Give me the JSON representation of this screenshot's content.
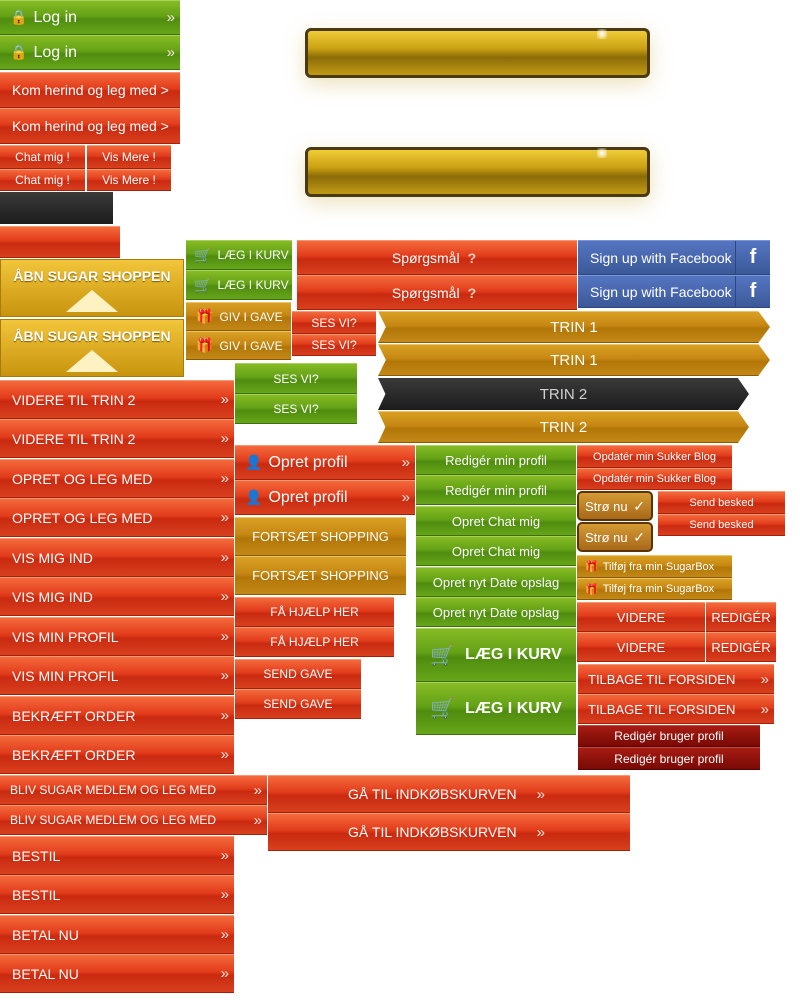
{
  "icons": {
    "arrow": "»",
    "lock": "🔒",
    "cart": "🛒",
    "gift": "🎁",
    "user": "👤",
    "question": "?",
    "check": "✓",
    "facebook": "f"
  },
  "colors": {
    "red": "#e23c1b",
    "green": "#64a216",
    "gold": "#c68712",
    "dark_red": "#8e120b",
    "facebook": "#3b5998",
    "dark": "#2a2a2a"
  },
  "buttons": {
    "log_in": "Log in",
    "kom_herind": "Kom herind og leg med >",
    "chat_mig": "Chat mig !",
    "vis_mere": "Vis Mere !",
    "laeg_i_kurv_small": "LÆG I KURV",
    "aabn_sugar_shoppen": "ÅBN SUGAR SHOPPEN",
    "giv_i_gave": "GIV I GAVE",
    "sporgsmaal": "Spørgsmål",
    "sign_up_facebook": "Sign up with Facebook",
    "ses_vi": "SES VI?",
    "trin_1": "TRIN 1",
    "trin_2": "TRIN 2",
    "videre_til_trin_2": "VIDERE TIL TRIN 2",
    "opret_og_leg_med": "OPRET OG LEG MED",
    "vis_mig_ind": "VIS MIG IND",
    "vis_min_profil": "VIS MIN PROFIL",
    "bekraeft_order": "BEKRÆFT ORDER",
    "bliv_sugar_medlem": "BLIV SUGAR MEDLEM OG LEG MED",
    "bestil": "BESTIL",
    "betal_nu": "BETAL NU",
    "opret_profil": "Opret profil",
    "fortsaet_shopping": "FORTSÆT SHOPPING",
    "faa_hjaelp_her": "FÅ HJÆLP HER",
    "send_gave": "SEND GAVE",
    "gaa_til_indkobskurven": "GÅ TIL INDKØBSKURVEN",
    "rediger_min_profil": "Redigér min profil",
    "opret_chat_mig": "Opret Chat mig",
    "opret_nyt_date_opslag": "Opret nyt Date opslag",
    "laeg_i_kurv_large": "LÆG I KURV",
    "opdater_min_sukker_blog": "Opdatér min Sukker Blog",
    "stro_nu": "Strø nu",
    "send_besked": "Send besked",
    "tilfoj_fra_sugarbox": "Tilføj fra min SugarBox",
    "videre": "VIDERE",
    "rediger": "REDIGÉR",
    "tilbage_til_forsiden": "TILBAGE TIL FORSIDEN",
    "rediger_bruger_profil": "Redigér bruger profil"
  }
}
